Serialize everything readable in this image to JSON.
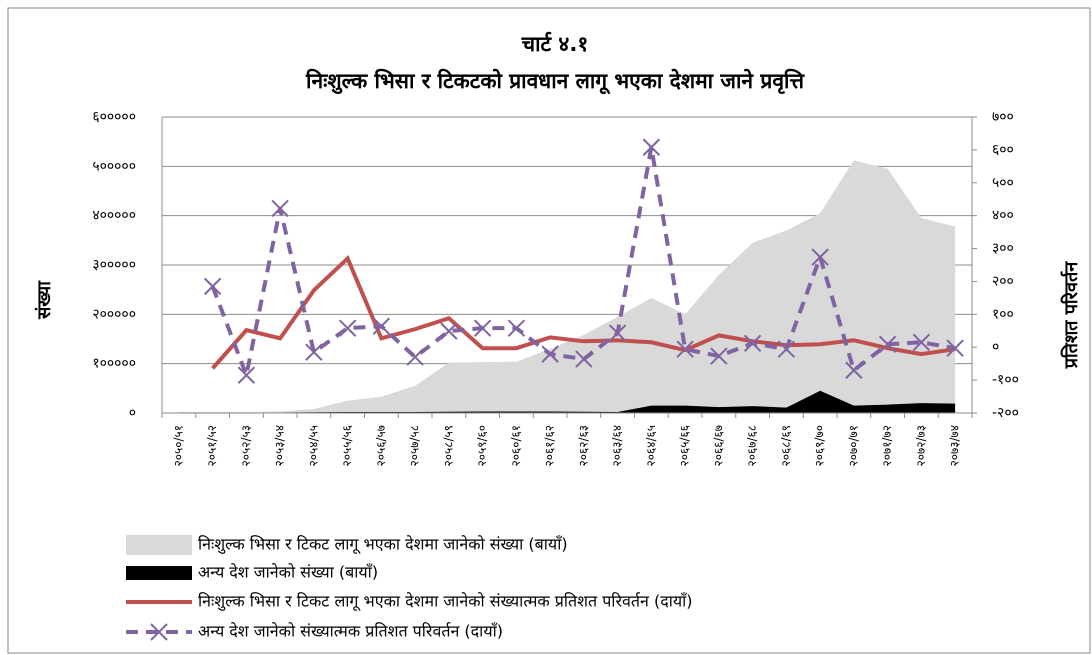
{
  "chart_data": {
    "type": "area-line",
    "title": "चार्ट ४.१",
    "subtitle": "निःशुल्क भिसा र टिकटको प्रावधान लागू भएका देशमा जाने प्रवृत्ति",
    "ylabel": "संख्या",
    "y2label": "प्रतिशत परिवर्तन",
    "categories": [
      "२०५०/५१",
      "२०५१/५२",
      "२०५२/५३",
      "२०५३/५४",
      "२०५४/५५",
      "२०५५/५६",
      "२०५६/५७",
      "२०५७/५८",
      "२०५८/५९",
      "२०५९/६०",
      "२०६०/६१",
      "२०६१/६२",
      "२०६२/६३",
      "२०६३/६४",
      "२०६४/६५",
      "२०६५/६६",
      "२०६६/६७",
      "२०६७/६८",
      "२०६८/६९",
      "२०६९/७०",
      "२०७०/७१",
      "२०७१/७२",
      "२०७२/७३",
      "२०७३/७४"
    ],
    "series": [
      {
        "name": "निःशुल्क भिसा र टिकट लागू भएका देशमा जानेको संख्या (बायाँ)",
        "kind": "area",
        "color": "#d9d9d9",
        "axis": "y",
        "values": [
          2000,
          2000,
          2000,
          3000,
          8000,
          25000,
          33000,
          55000,
          102000,
          103000,
          104000,
          130000,
          158000,
          195000,
          233000,
          200000,
          280000,
          345000,
          370000,
          405000,
          512000,
          495000,
          395000,
          378000
        ]
      },
      {
        "name": "अन्य देश जानेको संख्या (बायाँ)",
        "kind": "area",
        "color": "#000000",
        "axis": "y",
        "values": [
          1000,
          1000,
          1000,
          1000,
          1500,
          2000,
          2000,
          2000,
          2500,
          3000,
          3000,
          3000,
          2500,
          2000,
          15000,
          15000,
          12000,
          14000,
          11000,
          45000,
          15000,
          17000,
          20000,
          19000
        ]
      },
      {
        "name": "निःशुल्क भिसा र टिकट लागू भएका देशमा जानेको संख्यात्मक प्रतिशत परिवर्तन (दायाँ)",
        "kind": "line",
        "color": "#c0504d",
        "axis": "y2",
        "values": [
          null,
          -64,
          52,
          27,
          173,
          270,
          27,
          55,
          88,
          -3,
          -3,
          30,
          18,
          21,
          15,
          -9,
          36,
          18,
          6,
          9,
          21,
          -3,
          -21,
          -6
        ]
      },
      {
        "name": "अन्य देश जानेको संख्यात्मक प्रतिशत परिवर्तन (दायाँ)",
        "kind": "dashed-line",
        "color": "#8064a2",
        "axis": "y2",
        "values": [
          null,
          185,
          -85,
          422,
          -15,
          58,
          64,
          -30,
          49,
          58,
          58,
          -21,
          -36,
          43,
          608,
          -6,
          -27,
          12,
          -6,
          274,
          -70,
          9,
          15,
          -3
        ]
      }
    ],
    "ylim": [
      0,
      600000
    ],
    "yticks": [
      {
        "value": 0,
        "label": "०"
      },
      {
        "value": 100000,
        "label": "१०००००"
      },
      {
        "value": 200000,
        "label": "२०००००"
      },
      {
        "value": 300000,
        "label": "३०००००"
      },
      {
        "value": 400000,
        "label": "४०००००"
      },
      {
        "value": 500000,
        "label": "५०००००"
      },
      {
        "value": 600000,
        "label": "६०००००"
      }
    ],
    "y2lim": [
      -200,
      700
    ],
    "y2ticks": [
      {
        "value": -200,
        "label": "-२००"
      },
      {
        "value": -100,
        "label": "-१००"
      },
      {
        "value": 0,
        "label": "०"
      },
      {
        "value": 100,
        "label": "१००"
      },
      {
        "value": 200,
        "label": "२००"
      },
      {
        "value": 300,
        "label": "३००"
      },
      {
        "value": 400,
        "label": "४००"
      },
      {
        "value": 500,
        "label": "५००"
      },
      {
        "value": 600,
        "label": "६००"
      },
      {
        "value": 700,
        "label": "७००"
      }
    ],
    "grid": true
  }
}
